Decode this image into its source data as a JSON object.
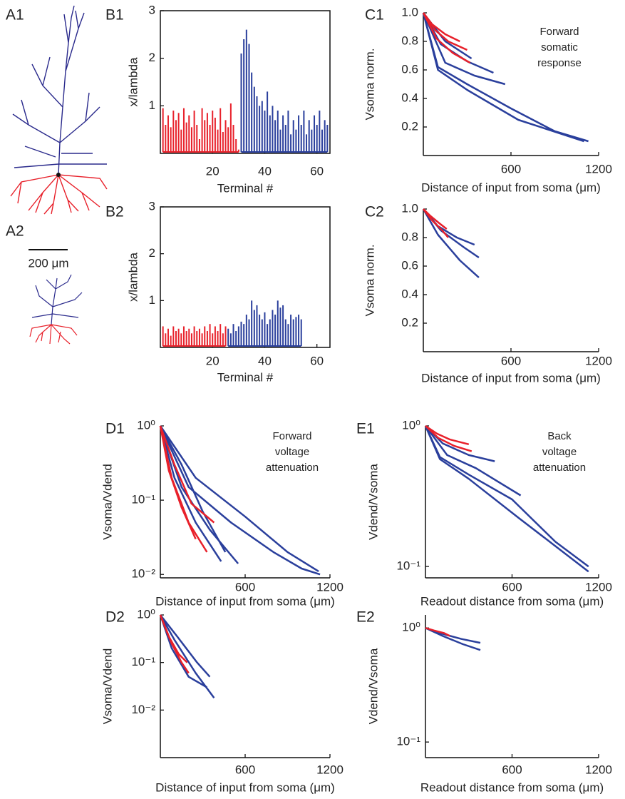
{
  "morphology": {
    "labels": [
      "A1",
      "A2"
    ],
    "scale_bar": "200 μm"
  },
  "chart_data": [
    {
      "type": "dendrogram",
      "panel": "B1",
      "ylabel": "x/lambda",
      "xlabel": "Terminal #",
      "xlim": [
        0,
        65
      ],
      "xticks": [
        20,
        40,
        60
      ],
      "ylim": [
        0,
        3
      ],
      "yticks": [
        1,
        2,
        3
      ],
      "series": [
        {
          "color": "#e8202a",
          "x": [
            1,
            2,
            3,
            4,
            5,
            6,
            7,
            8,
            9,
            10,
            11,
            12,
            13,
            14,
            15,
            16,
            17,
            18,
            19,
            20,
            21,
            22,
            23,
            24,
            25,
            26,
            27,
            28,
            29,
            30
          ],
          "values": [
            0.95,
            0.6,
            0.8,
            0.55,
            0.9,
            0.7,
            0.85,
            0.5,
            0.95,
            0.65,
            0.8,
            0.55,
            0.9,
            0.6,
            0.3,
            0.95,
            0.7,
            0.85,
            0.6,
            0.9,
            0.75,
            0.5,
            0.95,
            0.45,
            0.7,
            0.55,
            1.05,
            0.6,
            0.3,
            0.08
          ]
        },
        {
          "color": "#2a3f9c",
          "x": [
            31,
            32,
            33,
            34,
            35,
            36,
            37,
            38,
            39,
            40,
            41,
            42,
            43,
            44,
            45,
            46,
            47,
            48,
            49,
            50,
            51,
            52,
            53,
            54,
            55,
            56,
            57,
            58,
            59,
            60,
            61,
            62,
            63,
            64
          ],
          "values": [
            2.1,
            2.4,
            2.6,
            2.3,
            1.7,
            1.4,
            1.2,
            1.0,
            1.1,
            0.9,
            1.3,
            0.8,
            1.0,
            0.7,
            0.9,
            0.5,
            0.8,
            0.6,
            0.9,
            0.4,
            0.7,
            0.5,
            0.8,
            0.6,
            0.9,
            0.4,
            0.7,
            0.5,
            0.8,
            0.6,
            0.9,
            0.5,
            0.7,
            0.6
          ]
        }
      ]
    },
    {
      "type": "dendrogram",
      "panel": "B2",
      "ylabel": "x/lambda",
      "xlabel": "Terminal #",
      "xlim": [
        0,
        65
      ],
      "xticks": [
        20,
        40,
        60
      ],
      "ylim": [
        0,
        3
      ],
      "yticks": [
        1,
        2,
        3
      ],
      "series": [
        {
          "color": "#e8202a",
          "x": [
            1,
            2,
            3,
            4,
            5,
            6,
            7,
            8,
            9,
            10,
            11,
            12,
            13,
            14,
            15,
            16,
            17,
            18,
            19,
            20,
            21,
            22,
            23,
            24,
            25
          ],
          "values": [
            0.45,
            0.3,
            0.4,
            0.25,
            0.45,
            0.35,
            0.4,
            0.3,
            0.45,
            0.35,
            0.4,
            0.3,
            0.45,
            0.35,
            0.4,
            0.3,
            0.45,
            0.35,
            0.5,
            0.3,
            0.45,
            0.35,
            0.5,
            0.3,
            0.45
          ]
        },
        {
          "color": "#2a3f9c",
          "x": [
            26,
            27,
            28,
            29,
            30,
            31,
            32,
            33,
            34,
            35,
            36,
            37,
            38,
            39,
            40,
            41,
            42,
            43,
            44,
            45,
            46,
            47,
            48,
            49,
            50,
            51,
            52,
            53,
            54
          ],
          "values": [
            0.4,
            0.3,
            0.5,
            0.35,
            0.45,
            0.55,
            0.5,
            0.7,
            0.6,
            1.0,
            0.8,
            0.9,
            0.7,
            0.6,
            0.75,
            0.5,
            0.6,
            0.8,
            0.7,
            1.0,
            0.85,
            0.9,
            0.6,
            0.5,
            0.7,
            0.6,
            0.65,
            0.7,
            0.6
          ]
        }
      ]
    },
    {
      "type": "line",
      "panel": "C1",
      "ylabel": "Vsoma norm.",
      "xlabel": "Distance of input from soma (μm)",
      "annotation": [
        "Forward",
        "somatic",
        "response"
      ],
      "xlim": [
        0,
        1200
      ],
      "xticks": [
        600,
        1200
      ],
      "ylim": [
        0,
        1
      ],
      "yticks": [
        0.2,
        0.4,
        0.6,
        0.8,
        {
          "value": 1,
          "label": "1.0"
        }
      ],
      "series": [
        {
          "color": "#2a3f9c",
          "x": [
            0,
            100,
            300,
            600,
            900,
            1130
          ],
          "values": [
            1,
            0.62,
            0.5,
            0.33,
            0.17,
            0.1
          ]
        },
        {
          "color": "#2a3f9c",
          "x": [
            0,
            100,
            300,
            650,
            1100
          ],
          "values": [
            1,
            0.6,
            0.46,
            0.25,
            0.1
          ]
        },
        {
          "color": "#2a3f9c",
          "x": [
            0,
            150,
            350,
            560
          ],
          "values": [
            1,
            0.65,
            0.56,
            0.5
          ]
        },
        {
          "color": "#2a3f9c",
          "x": [
            0,
            120,
            300,
            480
          ],
          "values": [
            1,
            0.78,
            0.66,
            0.58
          ]
        },
        {
          "color": "#2a3f9c",
          "x": [
            0,
            150,
            330
          ],
          "values": [
            1,
            0.8,
            0.68
          ]
        },
        {
          "color": "#e8202a",
          "x": [
            0,
            80,
            170,
            300
          ],
          "values": [
            1,
            0.88,
            0.8,
            0.74
          ]
        },
        {
          "color": "#e8202a",
          "x": [
            0,
            90,
            200,
            320
          ],
          "values": [
            1,
            0.82,
            0.72,
            0.65
          ]
        },
        {
          "color": "#e8202a",
          "x": [
            0,
            60,
            150,
            250
          ],
          "values": [
            1,
            0.92,
            0.85,
            0.8
          ]
        }
      ]
    },
    {
      "type": "line",
      "panel": "C2",
      "ylabel": "Vsoma norm.",
      "xlabel": "Distance of input from soma (μm)",
      "xlim": [
        0,
        1200
      ],
      "xticks": [
        600,
        1200
      ],
      "ylim": [
        0,
        1
      ],
      "yticks": [
        0.2,
        0.4,
        0.6,
        0.8,
        {
          "value": 1,
          "label": "1.0"
        }
      ],
      "series": [
        {
          "color": "#2a3f9c",
          "x": [
            0,
            100,
            250,
            380
          ],
          "values": [
            1,
            0.82,
            0.64,
            0.52
          ]
        },
        {
          "color": "#2a3f9c",
          "x": [
            0,
            120,
            280,
            380
          ],
          "values": [
            1,
            0.85,
            0.73,
            0.66
          ]
        },
        {
          "color": "#2a3f9c",
          "x": [
            0,
            100,
            230,
            350
          ],
          "values": [
            1,
            0.88,
            0.8,
            0.75
          ]
        },
        {
          "color": "#e8202a",
          "x": [
            0,
            60,
            130,
            170
          ],
          "values": [
            1,
            0.92,
            0.85,
            0.8
          ]
        },
        {
          "color": "#e8202a",
          "x": [
            0,
            50,
            110,
            160
          ],
          "values": [
            1,
            0.95,
            0.9,
            0.86
          ]
        }
      ]
    },
    {
      "type": "line",
      "panel": "D1",
      "ylabel": "Vsoma/Vdend",
      "xlabel": "Distance of input from soma (μm)",
      "annotation": [
        "Forward",
        "voltage",
        "attenuation"
      ],
      "ylog": true,
      "xlim": [
        0,
        1200
      ],
      "xticks": [
        600,
        1200
      ],
      "ylim": [
        0.009,
        1
      ],
      "yticks": [
        {
          "value": 1,
          "label": "10⁰"
        },
        {
          "value": 0.1,
          "label": "10⁻¹"
        },
        {
          "value": 0.01,
          "label": "10⁻²"
        }
      ],
      "series": [
        {
          "color": "#2a3f9c",
          "x": [
            0,
            200,
            500,
            800,
            1000,
            1130
          ],
          "values": [
            1,
            0.15,
            0.05,
            0.02,
            0.012,
            0.01
          ]
        },
        {
          "color": "#2a3f9c",
          "x": [
            0,
            250,
            600,
            900,
            1120
          ],
          "values": [
            1,
            0.2,
            0.06,
            0.02,
            0.011
          ]
        },
        {
          "color": "#2a3f9c",
          "x": [
            0,
            150,
            350,
            550
          ],
          "values": [
            1,
            0.15,
            0.04,
            0.014
          ]
        },
        {
          "color": "#2a3f9c",
          "x": [
            0,
            100,
            250,
            430
          ],
          "values": [
            1,
            0.2,
            0.05,
            0.015
          ]
        },
        {
          "color": "#2a3f9c",
          "x": [
            0,
            150,
            300,
            460
          ],
          "values": [
            1,
            0.3,
            0.07,
            0.02
          ]
        },
        {
          "color": "#e8202a",
          "x": [
            0,
            80,
            200,
            330
          ],
          "values": [
            1,
            0.2,
            0.05,
            0.02
          ]
        },
        {
          "color": "#e8202a",
          "x": [
            0,
            100,
            220,
            380
          ],
          "values": [
            1,
            0.3,
            0.09,
            0.05
          ]
        },
        {
          "color": "#e8202a",
          "x": [
            0,
            60,
            150,
            250
          ],
          "values": [
            1,
            0.25,
            0.08,
            0.03
          ]
        }
      ]
    },
    {
      "type": "line",
      "panel": "D2",
      "ylabel": "Vsoma/Vdend",
      "xlabel": "Distance of input from soma (μm)",
      "ylog": true,
      "xlim": [
        0,
        1200
      ],
      "xticks": [
        600,
        1200
      ],
      "ylim": [
        0.001,
        1
      ],
      "yticks": [
        {
          "value": 1,
          "label": "10⁰"
        },
        {
          "value": 0.1,
          "label": "10⁻¹"
        },
        {
          "value": 0.01,
          "label": "10⁻²"
        }
      ],
      "series": [
        {
          "color": "#2a3f9c",
          "x": [
            0,
            100,
            250,
            380
          ],
          "values": [
            1,
            0.3,
            0.06,
            0.018
          ]
        },
        {
          "color": "#2a3f9c",
          "x": [
            0,
            120,
            260,
            350
          ],
          "values": [
            1,
            0.35,
            0.1,
            0.05
          ]
        },
        {
          "color": "#2a3f9c",
          "x": [
            0,
            80,
            200,
            330
          ],
          "values": [
            1,
            0.2,
            0.05,
            0.03
          ]
        },
        {
          "color": "#e8202a",
          "x": [
            0,
            80,
            150,
            200
          ],
          "values": [
            1,
            0.25,
            0.1,
            0.06
          ]
        },
        {
          "color": "#e8202a",
          "x": [
            0,
            60,
            130,
            190
          ],
          "values": [
            1,
            0.35,
            0.15,
            0.1
          ]
        }
      ]
    },
    {
      "type": "line",
      "panel": "E1",
      "ylabel": "Vdend/Vsoma",
      "xlabel": "Readout distance from soma (μm)",
      "annotation": [
        "Back",
        "voltage",
        "attenuation"
      ],
      "ylog": true,
      "xlim": [
        0,
        1200
      ],
      "xticks": [
        600,
        1200
      ],
      "ylim": [
        0.083,
        1
      ],
      "yticks": [
        {
          "value": 1,
          "label": "10⁰"
        },
        {
          "value": 0.1,
          "label": "10⁻¹"
        }
      ],
      "series": [
        {
          "color": "#2a3f9c",
          "x": [
            0,
            100,
            300,
            600,
            900,
            1130
          ],
          "values": [
            1,
            0.6,
            0.45,
            0.3,
            0.15,
            0.1
          ]
        },
        {
          "color": "#2a3f9c",
          "x": [
            0,
            100,
            300,
            650,
            1130
          ],
          "values": [
            1,
            0.58,
            0.42,
            0.22,
            0.092
          ]
        },
        {
          "color": "#2a3f9c",
          "x": [
            0,
            150,
            350,
            660
          ],
          "values": [
            1,
            0.62,
            0.5,
            0.32
          ]
        },
        {
          "color": "#2a3f9c",
          "x": [
            0,
            120,
            300,
            480
          ],
          "values": [
            1,
            0.75,
            0.62,
            0.56
          ]
        },
        {
          "color": "#e8202a",
          "x": [
            0,
            80,
            170,
            300
          ],
          "values": [
            1,
            0.88,
            0.8,
            0.74
          ]
        },
        {
          "color": "#e8202a",
          "x": [
            0,
            90,
            200,
            320
          ],
          "values": [
            1,
            0.82,
            0.72,
            0.66
          ]
        }
      ]
    },
    {
      "type": "line",
      "panel": "E2",
      "ylabel": "Vdend/Vsoma",
      "xlabel": "Readout distance from soma (μm)",
      "ylog": true,
      "xlim": [
        0,
        1200
      ],
      "xticks": [
        600,
        1200
      ],
      "ylim": [
        0.073,
        1.3
      ],
      "yticks": [
        {
          "value": 1,
          "label": "10⁰"
        },
        {
          "value": 0.1,
          "label": "10⁻¹"
        }
      ],
      "series": [
        {
          "color": "#2a3f9c",
          "x": [
            0,
            120,
            260,
            380
          ],
          "values": [
            1,
            0.85,
            0.72,
            0.64
          ]
        },
        {
          "color": "#2a3f9c",
          "x": [
            0,
            100,
            250,
            380
          ],
          "values": [
            1,
            0.9,
            0.8,
            0.74
          ]
        },
        {
          "color": "#e8202a",
          "x": [
            0,
            60,
            130,
            170
          ],
          "values": [
            1,
            0.95,
            0.9,
            0.85
          ]
        }
      ]
    }
  ]
}
